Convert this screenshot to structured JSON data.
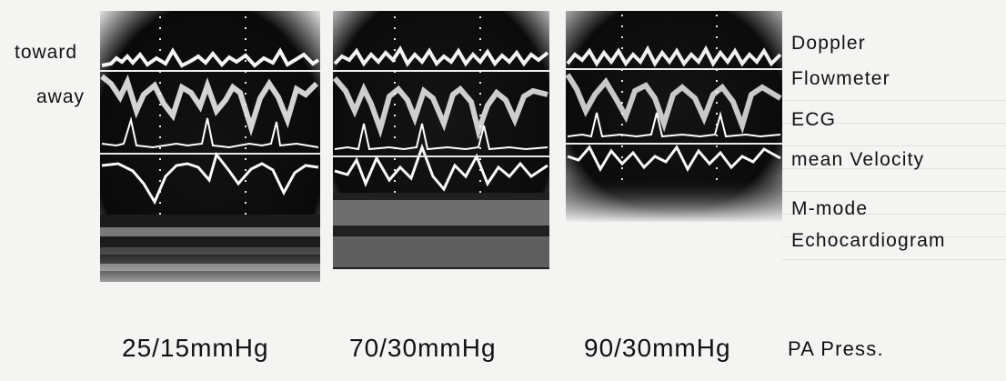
{
  "figure": {
    "left_labels": {
      "toward": "toward",
      "away": "away"
    },
    "right_labels": {
      "doppler": "Doppler",
      "flowmeter": "Flowmeter",
      "ecg": "ECG",
      "mean_velocity": "mean Velocity",
      "m_mode": "M-mode",
      "echocardiogram": "Echocardiogram",
      "pa_press": "PA Press."
    },
    "pressure_labels": [
      "25/15mmHg",
      "70/30mmHg",
      "90/30mmHg"
    ]
  }
}
